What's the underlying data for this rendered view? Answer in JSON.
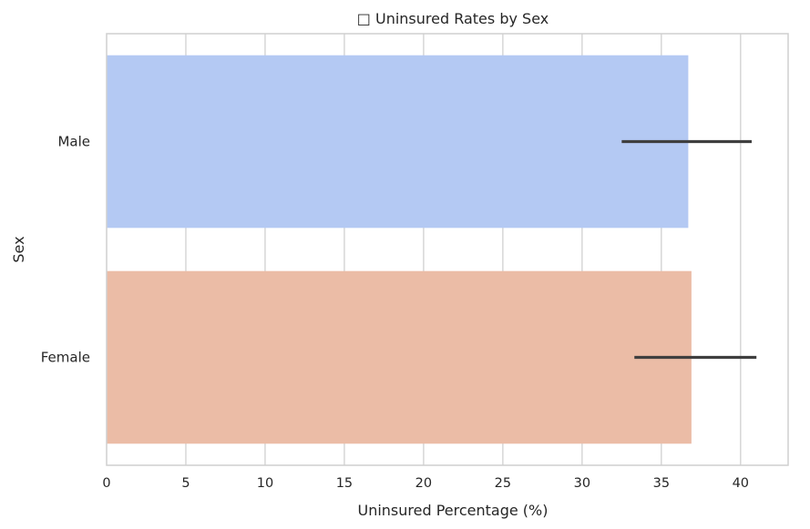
{
  "chart_data": {
    "type": "bar",
    "orientation": "horizontal",
    "title": "□ Uninsured Rates by Sex",
    "xlabel": "Uninsured Percentage (%)",
    "ylabel": "Sex",
    "xlim": [
      0,
      43
    ],
    "xticks": [
      0,
      5,
      10,
      15,
      20,
      25,
      30,
      35,
      40
    ],
    "grid": true,
    "categories": [
      "Male",
      "Female"
    ],
    "values": [
      36.7,
      36.9
    ],
    "error_low": [
      32.5,
      33.3
    ],
    "error_high": [
      40.7,
      41.0
    ],
    "colors": [
      "#b4c9f3",
      "#ebbca6"
    ],
    "error_color": "#3f3f3f"
  }
}
